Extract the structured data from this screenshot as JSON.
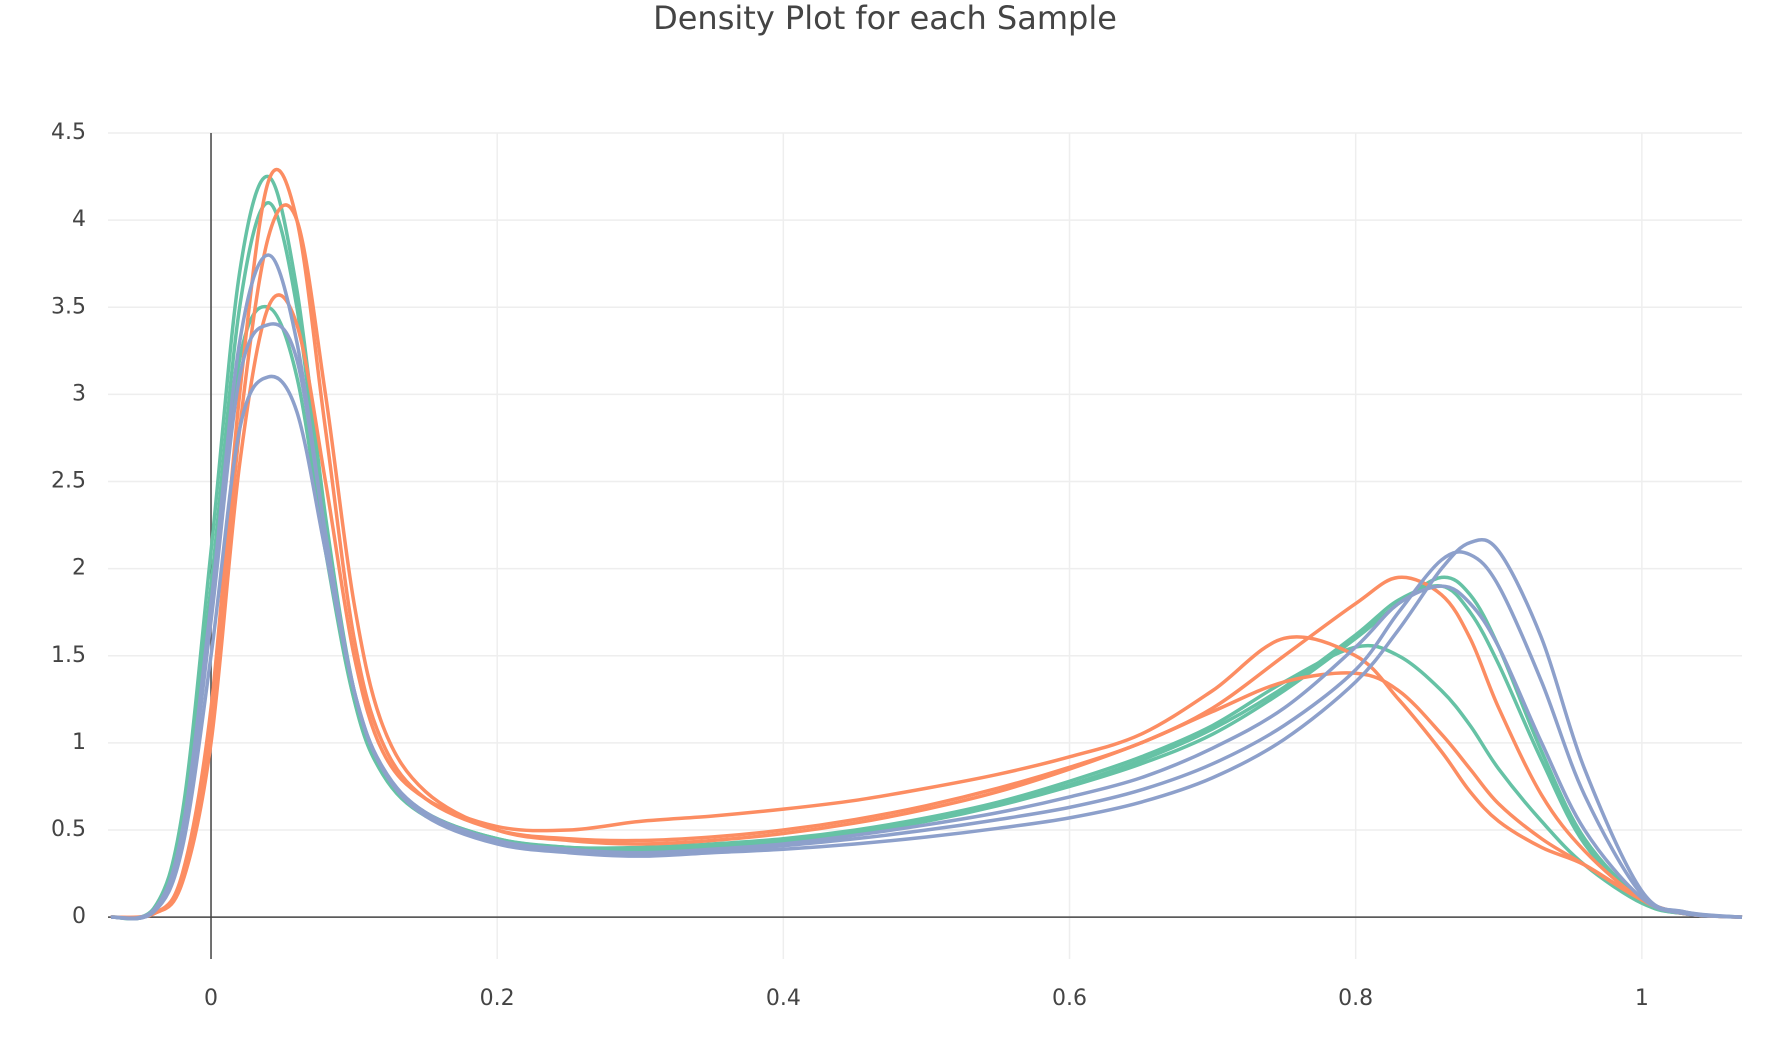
{
  "chart_data": {
    "type": "line",
    "title": "Density Plot for each Sample",
    "x": [
      -0.07,
      -0.04,
      -0.02,
      0,
      0.02,
      0.04,
      0.06,
      0.08,
      0.1,
      0.12,
      0.15,
      0.2,
      0.25,
      0.3,
      0.35,
      0.4,
      0.45,
      0.5,
      0.55,
      0.6,
      0.65,
      0.7,
      0.75,
      0.8,
      0.83,
      0.86,
      0.88,
      0.9,
      0.93,
      0.96,
      1.0,
      1.03,
      1.07
    ],
    "series": [
      {
        "color": "#66c2a5",
        "values": [
          0,
          0.05,
          0.6,
          2.1,
          3.7,
          4.25,
          3.6,
          2.3,
          1.3,
          0.85,
          0.6,
          0.45,
          0.4,
          0.38,
          0.4,
          0.43,
          0.48,
          0.55,
          0.64,
          0.75,
          0.88,
          1.05,
          1.3,
          1.6,
          1.8,
          1.95,
          1.85,
          1.55,
          0.95,
          0.45,
          0.1,
          0.02,
          0
        ]
      },
      {
        "color": "#66c2a5",
        "values": [
          0,
          0.04,
          0.5,
          1.8,
          3.2,
          3.5,
          3.1,
          2.1,
          1.25,
          0.85,
          0.6,
          0.45,
          0.4,
          0.4,
          0.42,
          0.45,
          0.5,
          0.57,
          0.66,
          0.78,
          0.92,
          1.1,
          1.35,
          1.55,
          1.5,
          1.3,
          1.1,
          0.85,
          0.55,
          0.3,
          0.08,
          0.02,
          0
        ]
      },
      {
        "color": "#66c2a5",
        "values": [
          0,
          0.05,
          0.55,
          1.9,
          3.5,
          4.1,
          3.5,
          2.2,
          1.25,
          0.82,
          0.58,
          0.44,
          0.4,
          0.39,
          0.41,
          0.44,
          0.49,
          0.56,
          0.65,
          0.76,
          0.9,
          1.08,
          1.32,
          1.62,
          1.82,
          1.9,
          1.75,
          1.45,
          0.9,
          0.42,
          0.09,
          0.02,
          0
        ]
      },
      {
        "color": "#fc8d62",
        "values": [
          0,
          0.02,
          0.25,
          1.2,
          3.0,
          4.22,
          4.0,
          2.8,
          1.6,
          1.0,
          0.68,
          0.5,
          0.45,
          0.44,
          0.46,
          0.5,
          0.56,
          0.64,
          0.74,
          0.86,
          1.0,
          1.2,
          1.5,
          1.8,
          1.95,
          1.85,
          1.6,
          1.2,
          0.7,
          0.38,
          0.1,
          0.02,
          0
        ]
      },
      {
        "color": "#fc8d62",
        "values": [
          0,
          0.02,
          0.2,
          1.0,
          2.6,
          3.5,
          3.4,
          2.5,
          1.5,
          0.95,
          0.68,
          0.52,
          0.5,
          0.55,
          0.58,
          0.62,
          0.67,
          0.74,
          0.82,
          0.92,
          1.05,
          1.3,
          1.6,
          1.5,
          1.25,
          0.95,
          0.72,
          0.55,
          0.4,
          0.3,
          0.1,
          0.02,
          0
        ]
      },
      {
        "color": "#fc8d62",
        "values": [
          0,
          0.02,
          0.22,
          1.1,
          2.8,
          3.9,
          4.0,
          3.0,
          1.8,
          1.1,
          0.72,
          0.5,
          0.44,
          0.42,
          0.44,
          0.48,
          0.54,
          0.62,
          0.72,
          0.85,
          1.0,
          1.18,
          1.35,
          1.4,
          1.3,
          1.05,
          0.85,
          0.65,
          0.45,
          0.3,
          0.1,
          0.02,
          0
        ]
      },
      {
        "color": "#8da0cb",
        "values": [
          0,
          0.03,
          0.4,
          1.5,
          2.8,
          3.1,
          2.9,
          2.1,
          1.3,
          0.85,
          0.58,
          0.42,
          0.37,
          0.35,
          0.37,
          0.39,
          0.42,
          0.46,
          0.51,
          0.57,
          0.66,
          0.8,
          1.02,
          1.35,
          1.65,
          2.0,
          2.15,
          2.1,
          1.6,
          0.85,
          0.15,
          0.03,
          0
        ]
      },
      {
        "color": "#8da0cb",
        "values": [
          0,
          0.04,
          0.5,
          1.8,
          3.3,
          3.8,
          3.3,
          2.2,
          1.3,
          0.85,
          0.6,
          0.43,
          0.38,
          0.36,
          0.38,
          0.41,
          0.45,
          0.5,
          0.56,
          0.63,
          0.73,
          0.88,
          1.1,
          1.42,
          1.75,
          2.05,
          2.08,
          1.9,
          1.35,
          0.7,
          0.13,
          0.03,
          0
        ]
      },
      {
        "color": "#8da0cb",
        "values": [
          0,
          0.04,
          0.45,
          1.7,
          3.1,
          3.4,
          3.2,
          2.2,
          1.3,
          0.86,
          0.6,
          0.44,
          0.39,
          0.37,
          0.39,
          0.42,
          0.47,
          0.53,
          0.6,
          0.69,
          0.8,
          0.97,
          1.2,
          1.55,
          1.8,
          1.9,
          1.8,
          1.55,
          1.0,
          0.5,
          0.11,
          0.02,
          0
        ]
      }
    ],
    "xlim": [
      -0.072,
      1.07
    ],
    "ylim": [
      -0.24,
      4.5
    ],
    "xticks": [
      0,
      0.2,
      0.4,
      0.6,
      0.8,
      1
    ],
    "yticks": [
      0,
      0.5,
      1,
      1.5,
      2,
      2.5,
      3,
      3.5,
      4,
      4.5
    ],
    "grid": true
  }
}
